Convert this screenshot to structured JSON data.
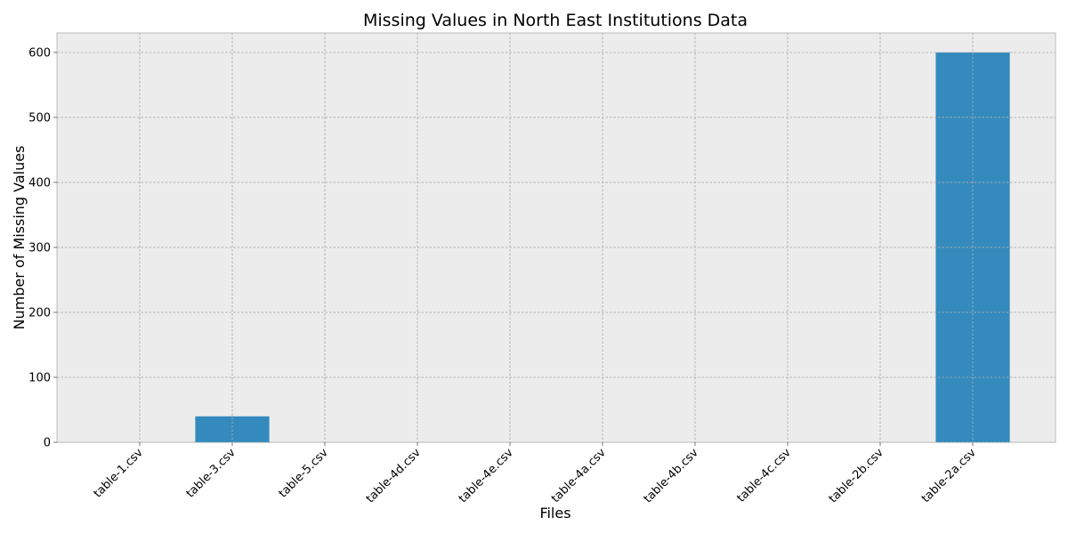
{
  "chart_data": {
    "type": "bar",
    "title": "Missing Values in North East Institutions Data",
    "xlabel": "Files",
    "ylabel": "Number of Missing Values",
    "categories": [
      "table-1.csv",
      "table-3.csv",
      "table-5.csv",
      "table-4d.csv",
      "table-4e.csv",
      "table-4a.csv",
      "table-4b.csv",
      "table-4c.csv",
      "table-2b.csv",
      "table-2a.csv"
    ],
    "values": [
      0,
      40,
      0,
      0,
      0,
      0,
      0,
      0,
      0,
      600
    ],
    "ylim": [
      0,
      630
    ],
    "yticks": [
      0,
      100,
      200,
      300,
      400,
      500,
      600
    ],
    "grid": true,
    "bar_color": "#348abd",
    "background_color": "#ececec"
  }
}
